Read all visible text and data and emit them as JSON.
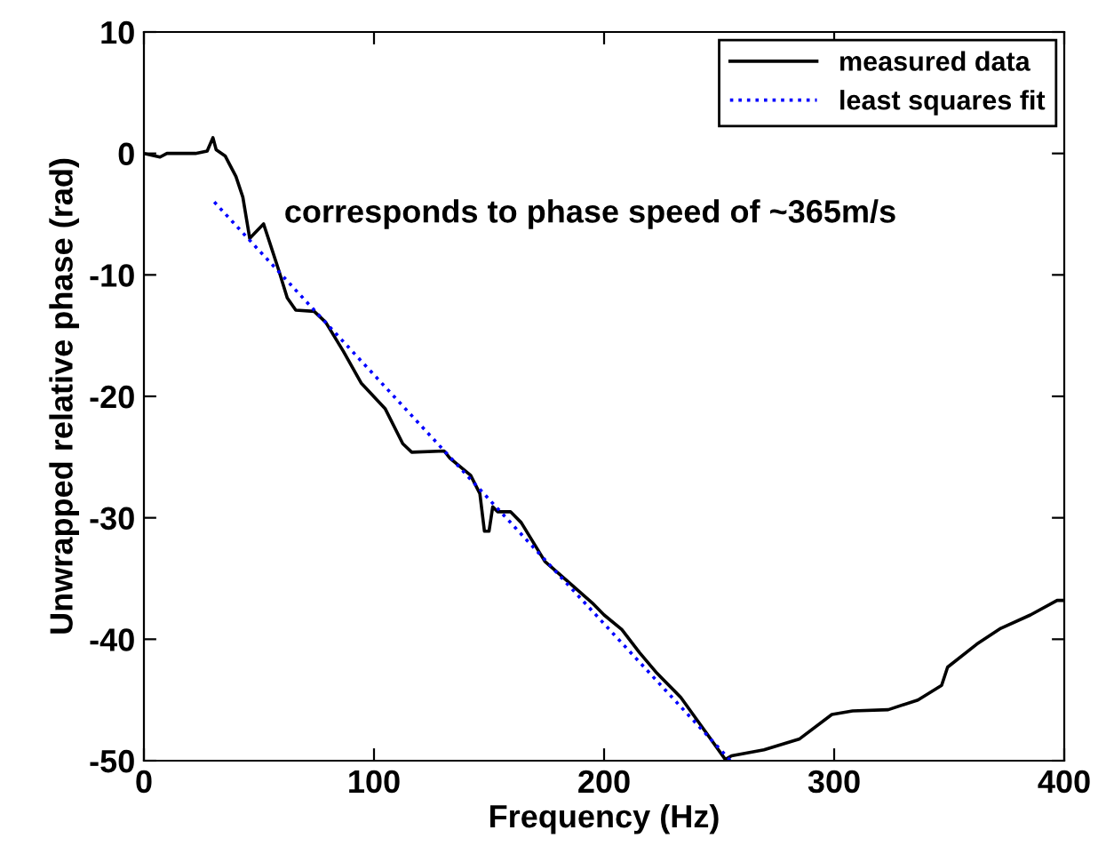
{
  "chart_data": {
    "type": "line",
    "xlabel": "Frequency (Hz)",
    "ylabel": "Unwrapped relative phase (rad)",
    "annotations": [
      "corresponds to phase speed of ~365m/s"
    ],
    "xlim": [
      0,
      400
    ],
    "ylim": [
      -50,
      10
    ],
    "xticks": [
      0,
      100,
      200,
      300,
      400
    ],
    "yticks": [
      -50,
      -40,
      -30,
      -20,
      -10,
      0,
      10
    ],
    "grid": false,
    "legend": "top right",
    "series": [
      {
        "name": "measured data",
        "color": "#000000",
        "line_style": "solid",
        "x": [
          0,
          7,
          10,
          22.4,
          27.5,
          30,
          31.4,
          35.3,
          40,
          43,
          46,
          48,
          52,
          54.6,
          58.4,
          62.3,
          66,
          74,
          79,
          86.7,
          94.4,
          104.8,
          112.5,
          116.4,
          130.5,
          133,
          142,
          146,
          148,
          150,
          151.6,
          153.7,
          159.3,
          164,
          174.3,
          184.6,
          194.8,
          200,
          207.7,
          215.4,
          223,
          233.4,
          242.5,
          252.7,
          255.4,
          269.5,
          285,
          299,
          308,
          323.5,
          336.4,
          346.7,
          349.3,
          362,
          372.4,
          385.3,
          396.9,
          400
        ],
        "values": [
          0,
          -0.3,
          0,
          0,
          0.2,
          1.3,
          0.3,
          -0.2,
          -1.9,
          -3.6,
          -7,
          -6.6,
          -5.8,
          -7.3,
          -9.5,
          -11.9,
          -12.9,
          -13,
          -13.9,
          -16.3,
          -18.9,
          -21,
          -23.9,
          -24.6,
          -24.5,
          -25.1,
          -26.5,
          -28,
          -31.1,
          -31.1,
          -29.1,
          -29.5,
          -29.5,
          -30.4,
          -33.6,
          -35.3,
          -37,
          -38,
          -39.2,
          -41.1,
          -42.8,
          -44.8,
          -47.2,
          -49.9,
          -49.6,
          -49.1,
          -48.2,
          -46.2,
          -45.9,
          -45.8,
          -45,
          -43.8,
          -42.3,
          -40.4,
          -39.1,
          -38,
          -36.8,
          -36.8
        ]
      },
      {
        "name": "least squares fit",
        "color": "#0000ff",
        "line_style": "dotted",
        "x": [
          30.6,
          255
        ],
        "values": [
          -4.0,
          -50
        ]
      }
    ]
  }
}
